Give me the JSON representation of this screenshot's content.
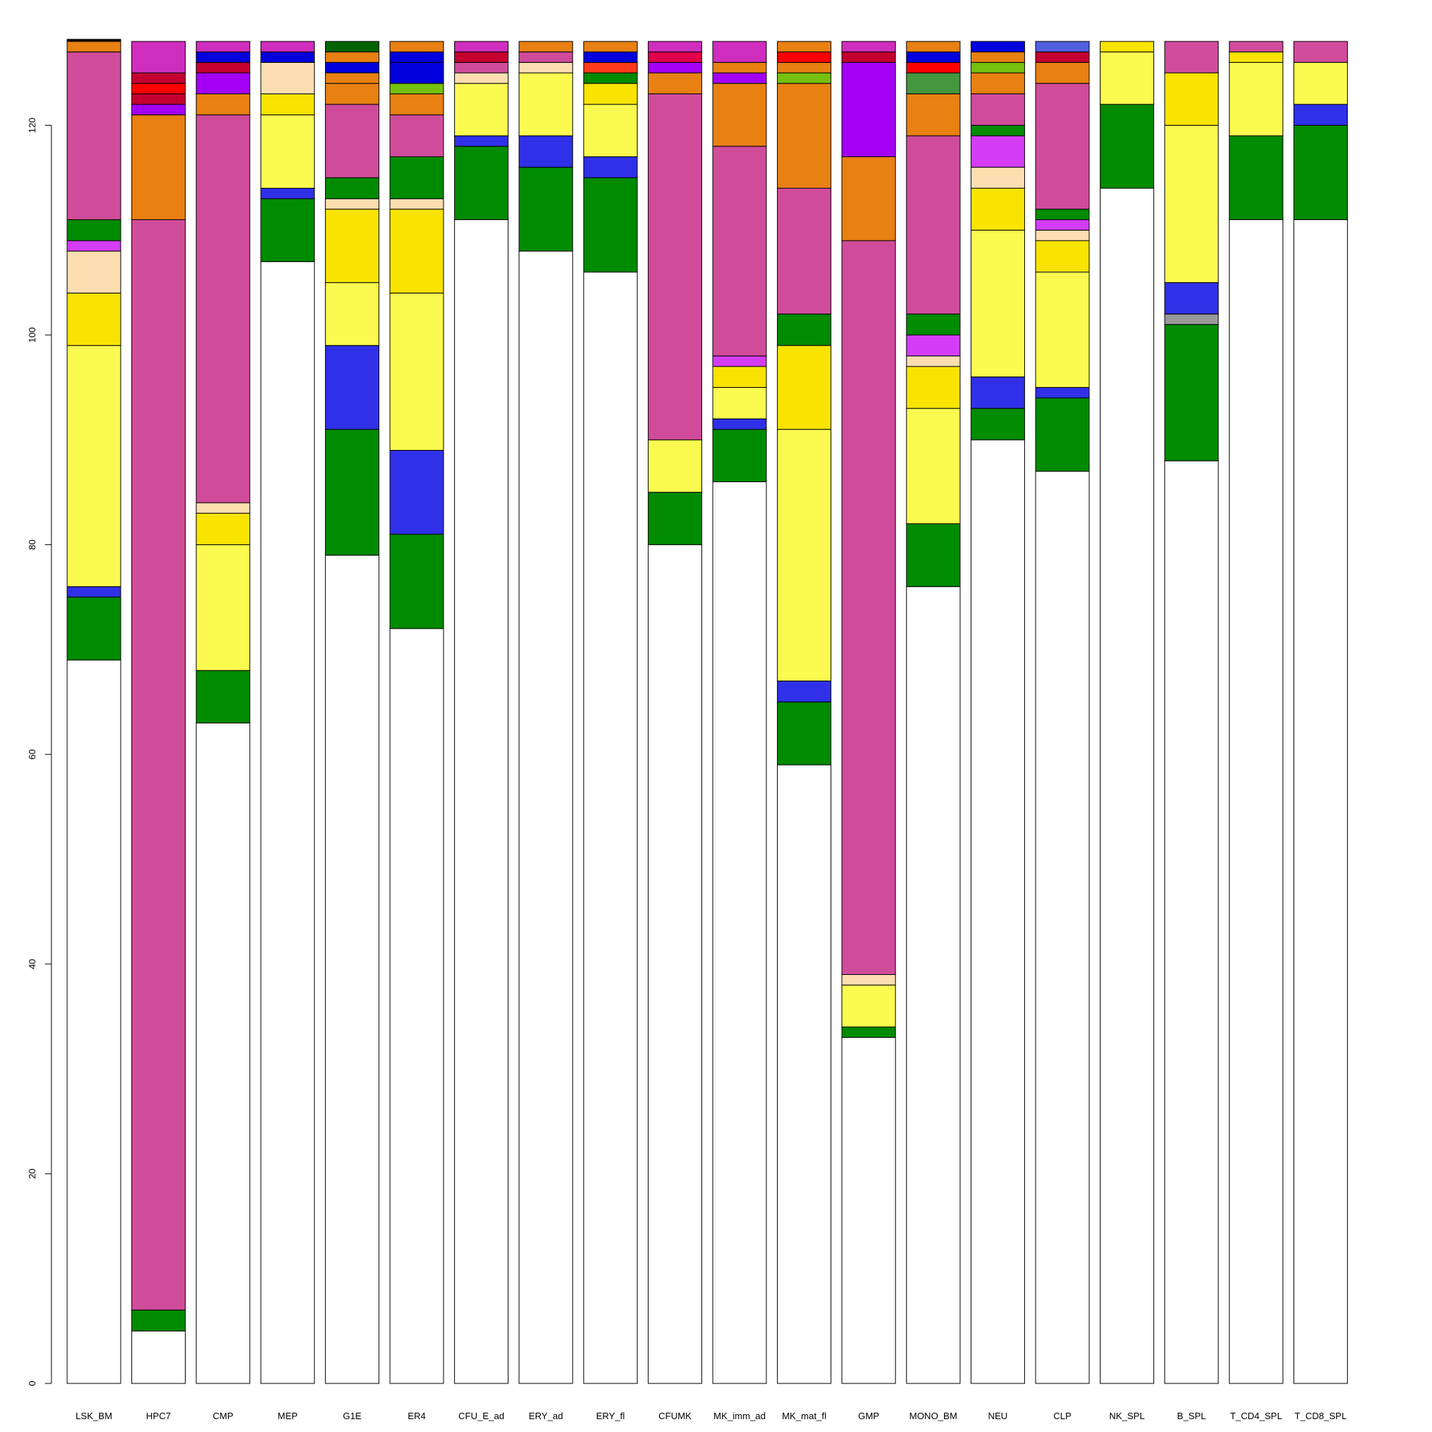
{
  "chart_data": {
    "type": "bar",
    "stacked": true,
    "title": "",
    "xlabel": "",
    "ylabel": "",
    "ylim": [
      0,
      128
    ],
    "yticks": [
      0,
      20,
      40,
      60,
      80,
      100,
      120
    ],
    "grid": false,
    "legend": "none",
    "categories": [
      "LSK_BM",
      "HPC7",
      "CMP",
      "MEP",
      "G1E",
      "ER4",
      "CFU_E_ad",
      "ERY_ad",
      "ERY_fl",
      "CFUMK",
      "MK_imm_ad",
      "MK_mat_fl",
      "GMP",
      "MONO_BM",
      "NEU",
      "CLP",
      "NK_SPL",
      "B_SPL",
      "T_CD4_SPL",
      "T_CD8_SPL"
    ],
    "bars": [
      {
        "category": "LSK_BM",
        "segments": [
          {
            "value": 69,
            "color": "#ffffff"
          },
          {
            "value": 6,
            "color": "#008b00"
          },
          {
            "value": 1,
            "color": "#3030e8"
          },
          {
            "value": 23,
            "color": "#fafa50"
          },
          {
            "value": 5,
            "color": "#f8e400"
          },
          {
            "value": 4,
            "color": "#fddeb0"
          },
          {
            "value": 1,
            "color": "#d43df5"
          },
          {
            "value": 2,
            "color": "#008b00"
          },
          {
            "value": 16,
            "color": "#d04c9b"
          },
          {
            "value": 1,
            "color": "#e88012"
          },
          {
            "value": 0.2,
            "color": "#000000"
          }
        ]
      },
      {
        "category": "HPC7",
        "segments": [
          {
            "value": 5,
            "color": "#ffffff"
          },
          {
            "value": 2,
            "color": "#008b00"
          },
          {
            "value": 104,
            "color": "#d04c9b"
          },
          {
            "value": 10,
            "color": "#e88012"
          },
          {
            "value": 1,
            "color": "#a400f5"
          },
          {
            "value": 1,
            "color": "#c40030"
          },
          {
            "value": 1,
            "color": "#ff0000"
          },
          {
            "value": 1,
            "color": "#c40030"
          },
          {
            "value": 3,
            "color": "#cf2dbd"
          }
        ]
      },
      {
        "category": "CMP",
        "segments": [
          {
            "value": 63,
            "color": "#ffffff"
          },
          {
            "value": 5,
            "color": "#008b00"
          },
          {
            "value": 12,
            "color": "#fafa50"
          },
          {
            "value": 3,
            "color": "#f8e400"
          },
          {
            "value": 1,
            "color": "#fddeb0"
          },
          {
            "value": 37,
            "color": "#d04c9b"
          },
          {
            "value": 2,
            "color": "#e88012"
          },
          {
            "value": 2,
            "color": "#a400f5"
          },
          {
            "value": 1,
            "color": "#c40030"
          },
          {
            "value": 1,
            "color": "#0000dd"
          },
          {
            "value": 1,
            "color": "#cf2dbd"
          }
        ]
      },
      {
        "category": "MEP",
        "segments": [
          {
            "value": 107,
            "color": "#ffffff"
          },
          {
            "value": 6,
            "color": "#008b00"
          },
          {
            "value": 1,
            "color": "#3030e8"
          },
          {
            "value": 7,
            "color": "#fafa50"
          },
          {
            "value": 2,
            "color": "#f8e400"
          },
          {
            "value": 3,
            "color": "#fddeb0"
          },
          {
            "value": 1,
            "color": "#0000dd"
          },
          {
            "value": 1,
            "color": "#cf2dbd"
          }
        ]
      },
      {
        "category": "G1E",
        "segments": [
          {
            "value": 79,
            "color": "#ffffff"
          },
          {
            "value": 12,
            "color": "#008b00"
          },
          {
            "value": 8,
            "color": "#3030e8"
          },
          {
            "value": 6,
            "color": "#fafa50"
          },
          {
            "value": 7,
            "color": "#f8e400"
          },
          {
            "value": 1,
            "color": "#fddeb0"
          },
          {
            "value": 2,
            "color": "#008b00"
          },
          {
            "value": 7,
            "color": "#d04c9b"
          },
          {
            "value": 2,
            "color": "#e88012"
          },
          {
            "value": 1,
            "color": "#e88012"
          },
          {
            "value": 1,
            "color": "#0000dd"
          },
          {
            "value": 1,
            "color": "#e88012"
          },
          {
            "value": 1,
            "color": "#006400"
          }
        ]
      },
      {
        "category": "ER4",
        "segments": [
          {
            "value": 72,
            "color": "#ffffff"
          },
          {
            "value": 9,
            "color": "#008b00"
          },
          {
            "value": 8,
            "color": "#3030e8"
          },
          {
            "value": 15,
            "color": "#fafa50"
          },
          {
            "value": 8,
            "color": "#f8e400"
          },
          {
            "value": 1,
            "color": "#fddeb0"
          },
          {
            "value": 4,
            "color": "#008b00"
          },
          {
            "value": 4,
            "color": "#d04c9b"
          },
          {
            "value": 2,
            "color": "#e88012"
          },
          {
            "value": 1,
            "color": "#76c00e"
          },
          {
            "value": 2,
            "color": "#0000dd"
          },
          {
            "value": 1,
            "color": "#0000dd"
          },
          {
            "value": 1,
            "color": "#e88012"
          }
        ]
      },
      {
        "category": "CFU_E_ad",
        "segments": [
          {
            "value": 111,
            "color": "#ffffff"
          },
          {
            "value": 7,
            "color": "#008b00"
          },
          {
            "value": 1,
            "color": "#3030e8"
          },
          {
            "value": 5,
            "color": "#fafa50"
          },
          {
            "value": 1,
            "color": "#fddeb0"
          },
          {
            "value": 1,
            "color": "#d04c9b"
          },
          {
            "value": 1,
            "color": "#c40030"
          },
          {
            "value": 1,
            "color": "#cf2dbd"
          }
        ]
      },
      {
        "category": "ERY_ad",
        "segments": [
          {
            "value": 108,
            "color": "#ffffff"
          },
          {
            "value": 8,
            "color": "#008b00"
          },
          {
            "value": 3,
            "color": "#3030e8"
          },
          {
            "value": 6,
            "color": "#fafa50"
          },
          {
            "value": 1,
            "color": "#fddeb0"
          },
          {
            "value": 1,
            "color": "#d04c9b"
          },
          {
            "value": 1,
            "color": "#e88012"
          }
        ]
      },
      {
        "category": "ERY_fl",
        "segments": [
          {
            "value": 106,
            "color": "#ffffff"
          },
          {
            "value": 9,
            "color": "#008b00"
          },
          {
            "value": 2,
            "color": "#3030e8"
          },
          {
            "value": 5,
            "color": "#fafa50"
          },
          {
            "value": 2,
            "color": "#f8e400"
          },
          {
            "value": 1,
            "color": "#008b00"
          },
          {
            "value": 1,
            "color": "#ff3a1a"
          },
          {
            "value": 1,
            "color": "#0000dd"
          },
          {
            "value": 1,
            "color": "#e88012"
          }
        ]
      },
      {
        "category": "CFUMK",
        "segments": [
          {
            "value": 80,
            "color": "#ffffff"
          },
          {
            "value": 5,
            "color": "#008b00"
          },
          {
            "value": 5,
            "color": "#fafa50"
          },
          {
            "value": 33,
            "color": "#d04c9b"
          },
          {
            "value": 2,
            "color": "#e88012"
          },
          {
            "value": 1,
            "color": "#a400f5"
          },
          {
            "value": 1,
            "color": "#e0004a"
          },
          {
            "value": 1,
            "color": "#cf2dbd"
          }
        ]
      },
      {
        "category": "MK_imm_ad",
        "segments": [
          {
            "value": 86,
            "color": "#ffffff"
          },
          {
            "value": 5,
            "color": "#008b00"
          },
          {
            "value": 1,
            "color": "#3030e8"
          },
          {
            "value": 3,
            "color": "#fafa50"
          },
          {
            "value": 2,
            "color": "#f8e400"
          },
          {
            "value": 1,
            "color": "#d43df5"
          },
          {
            "value": 20,
            "color": "#d04c9b"
          },
          {
            "value": 6,
            "color": "#e88012"
          },
          {
            "value": 1,
            "color": "#a400f5"
          },
          {
            "value": 1,
            "color": "#e88012"
          },
          {
            "value": 2,
            "color": "#cf2dbd"
          }
        ]
      },
      {
        "category": "MK_mat_fl",
        "segments": [
          {
            "value": 59,
            "color": "#ffffff"
          },
          {
            "value": 6,
            "color": "#008b00"
          },
          {
            "value": 2,
            "color": "#3030e8"
          },
          {
            "value": 24,
            "color": "#fafa50"
          },
          {
            "value": 8,
            "color": "#f8e400"
          },
          {
            "value": 3,
            "color": "#008b00"
          },
          {
            "value": 12,
            "color": "#d04c9b"
          },
          {
            "value": 10,
            "color": "#e88012"
          },
          {
            "value": 1,
            "color": "#76c00e"
          },
          {
            "value": 1,
            "color": "#e88012"
          },
          {
            "value": 1,
            "color": "#ff0000"
          },
          {
            "value": 1,
            "color": "#e88012"
          }
        ]
      },
      {
        "category": "GMP",
        "segments": [
          {
            "value": 33,
            "color": "#ffffff"
          },
          {
            "value": 1,
            "color": "#008b00"
          },
          {
            "value": 4,
            "color": "#fafa50"
          },
          {
            "value": 1,
            "color": "#fddeb0"
          },
          {
            "value": 70,
            "color": "#d04c9b"
          },
          {
            "value": 8,
            "color": "#e88012"
          },
          {
            "value": 9,
            "color": "#a400f5"
          },
          {
            "value": 1,
            "color": "#c40030"
          },
          {
            "value": 1,
            "color": "#cf2dbd"
          }
        ]
      },
      {
        "category": "MONO_BM",
        "segments": [
          {
            "value": 76,
            "color": "#ffffff"
          },
          {
            "value": 6,
            "color": "#008b00"
          },
          {
            "value": 11,
            "color": "#fafa50"
          },
          {
            "value": 4,
            "color": "#f8e400"
          },
          {
            "value": 1,
            "color": "#fddeb0"
          },
          {
            "value": 2,
            "color": "#d43df5"
          },
          {
            "value": 2,
            "color": "#008b00"
          },
          {
            "value": 17,
            "color": "#d04c9b"
          },
          {
            "value": 4,
            "color": "#e88012"
          },
          {
            "value": 2,
            "color": "#44963f"
          },
          {
            "value": 1,
            "color": "#ff0000"
          },
          {
            "value": 1,
            "color": "#0000dd"
          },
          {
            "value": 1,
            "color": "#e88012"
          }
        ]
      },
      {
        "category": "NEU",
        "segments": [
          {
            "value": 90,
            "color": "#ffffff"
          },
          {
            "value": 3,
            "color": "#008b00"
          },
          {
            "value": 3,
            "color": "#3030e8"
          },
          {
            "value": 14,
            "color": "#fafa50"
          },
          {
            "value": 4,
            "color": "#f8e400"
          },
          {
            "value": 2,
            "color": "#fddeb0"
          },
          {
            "value": 3,
            "color": "#d43df5"
          },
          {
            "value": 1,
            "color": "#008b00"
          },
          {
            "value": 3,
            "color": "#d04c9b"
          },
          {
            "value": 2,
            "color": "#e88012"
          },
          {
            "value": 1,
            "color": "#76c00e"
          },
          {
            "value": 1,
            "color": "#e88012"
          },
          {
            "value": 1,
            "color": "#0000dd"
          }
        ]
      },
      {
        "category": "CLP",
        "segments": [
          {
            "value": 87,
            "color": "#ffffff"
          },
          {
            "value": 7,
            "color": "#008b00"
          },
          {
            "value": 1,
            "color": "#3030e8"
          },
          {
            "value": 11,
            "color": "#fafa50"
          },
          {
            "value": 3,
            "color": "#f8e400"
          },
          {
            "value": 1,
            "color": "#fddeb0"
          },
          {
            "value": 1,
            "color": "#d43df5"
          },
          {
            "value": 1,
            "color": "#008b00"
          },
          {
            "value": 12,
            "color": "#d04c9b"
          },
          {
            "value": 2,
            "color": "#e88012"
          },
          {
            "value": 1,
            "color": "#c40030"
          },
          {
            "value": 1,
            "color": "#5060e0"
          }
        ]
      },
      {
        "category": "NK_SPL",
        "segments": [
          {
            "value": 114,
            "color": "#ffffff"
          },
          {
            "value": 8,
            "color": "#008b00"
          },
          {
            "value": 5,
            "color": "#fafa50"
          },
          {
            "value": 1,
            "color": "#f8e400"
          }
        ]
      },
      {
        "category": "B_SPL",
        "segments": [
          {
            "value": 88,
            "color": "#ffffff"
          },
          {
            "value": 13,
            "color": "#008b00"
          },
          {
            "value": 1,
            "color": "#999999"
          },
          {
            "value": 3,
            "color": "#3030e8"
          },
          {
            "value": 15,
            "color": "#fafa50"
          },
          {
            "value": 5,
            "color": "#f8e400"
          },
          {
            "value": 3,
            "color": "#d04c9b"
          }
        ]
      },
      {
        "category": "T_CD4_SPL",
        "segments": [
          {
            "value": 111,
            "color": "#ffffff"
          },
          {
            "value": 8,
            "color": "#008b00"
          },
          {
            "value": 7,
            "color": "#fafa50"
          },
          {
            "value": 1,
            "color": "#f8e400"
          },
          {
            "value": 1,
            "color": "#d04c9b"
          }
        ]
      },
      {
        "category": "T_CD8_SPL",
        "segments": [
          {
            "value": 111,
            "color": "#ffffff"
          },
          {
            "value": 9,
            "color": "#008b00"
          },
          {
            "value": 2,
            "color": "#3030e8"
          },
          {
            "value": 4,
            "color": "#fafa50"
          },
          {
            "value": 2,
            "color": "#d04c9b"
          }
        ]
      }
    ]
  }
}
